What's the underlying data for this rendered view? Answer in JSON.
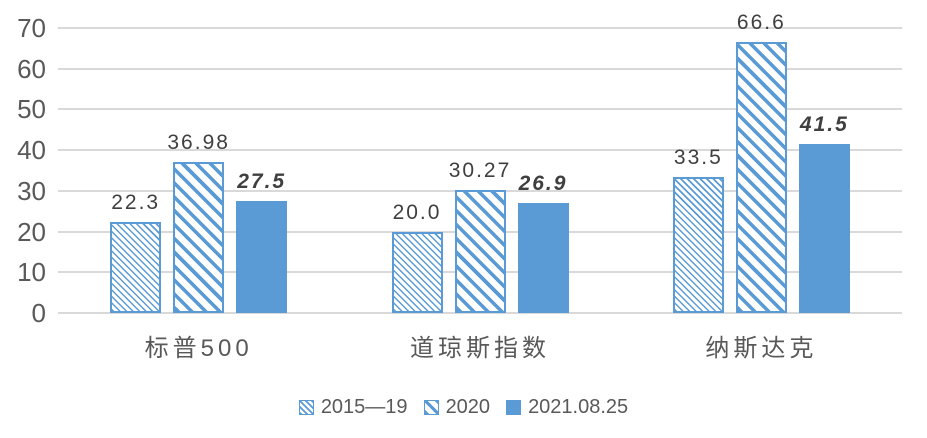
{
  "chart_data": {
    "type": "bar",
    "title": "",
    "categories": [
      "标普500",
      "道琼斯指数",
      "纳斯达克"
    ],
    "series": [
      {
        "name": "2015—19",
        "pattern": "hatch-fine",
        "values": [
          22.3,
          20.0,
          33.5
        ],
        "labels": [
          "22.3",
          "20.0",
          "33.5"
        ],
        "emphasis": false
      },
      {
        "name": "2020",
        "pattern": "hatch-coarse",
        "values": [
          36.98,
          30.27,
          66.6
        ],
        "labels": [
          "36.98",
          "30.27",
          "66.6"
        ],
        "emphasis": false
      },
      {
        "name": "2021.08.25",
        "pattern": "solid",
        "values": [
          27.5,
          26.9,
          41.5
        ],
        "labels": [
          "27.5",
          "26.9",
          "41.5"
        ],
        "emphasis": true
      }
    ],
    "y_axis": {
      "min": 0,
      "max": 70,
      "ticks": [
        0,
        10,
        20,
        30,
        40,
        50,
        60,
        70
      ]
    },
    "grid": true,
    "legend_position": "bottom",
    "colors": {
      "accent": "#5B9BD5",
      "gridline": "#D9D9D9",
      "axis_text": "#595959",
      "value_label": "#3F3F3F"
    }
  }
}
